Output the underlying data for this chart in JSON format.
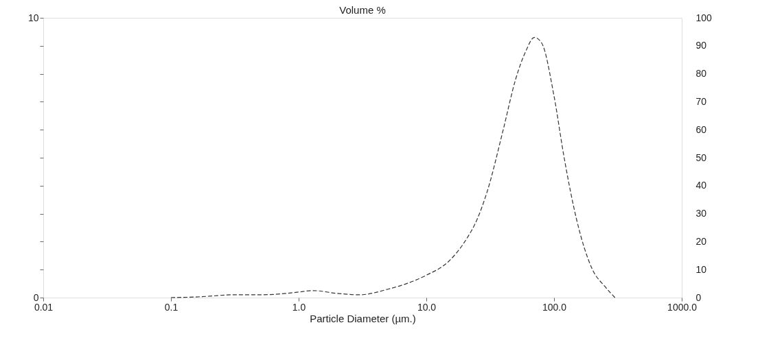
{
  "chart_data": {
    "type": "line",
    "title": "Volume %",
    "xlabel": "Particle Diameter (µm.)",
    "log": "x",
    "xlim": [
      0.01,
      1000
    ],
    "xticks": [
      {
        "value": 0.01,
        "label": "0.01"
      },
      {
        "value": 0.1,
        "label": "0.1"
      },
      {
        "value": 1,
        "label": "1.0"
      },
      {
        "value": 10,
        "label": "10.0"
      },
      {
        "value": 100,
        "label": "100.0"
      },
      {
        "value": 1000,
        "label": "1000.0"
      }
    ],
    "ylim": [
      0,
      10
    ],
    "yticks": [
      0,
      {
        "value": 1,
        "label": null
      },
      {
        "value": 2,
        "label": null
      },
      {
        "value": 3,
        "label": null
      },
      {
        "value": 4,
        "label": null
      },
      {
        "value": 5,
        "label": null
      },
      {
        "value": 6,
        "label": null
      },
      {
        "value": 7,
        "label": null
      },
      {
        "value": 8,
        "label": null
      },
      {
        "value": 9,
        "label": null
      },
      10
    ],
    "y2lim": [
      0,
      100
    ],
    "y2ticks": [
      0,
      10,
      20,
      30,
      40,
      50,
      60,
      70,
      80,
      90,
      100
    ],
    "grid": false,
    "line_style": "dashed",
    "series": [
      {
        "color": "#333333",
        "x": [
          0.1,
          0.15,
          0.2,
          0.3,
          0.5,
          0.8,
          1.0,
          1.3,
          2,
          3,
          5,
          7,
          10,
          15,
          20,
          25,
          30,
          40,
          50,
          60,
          70,
          80,
          100,
          120,
          150,
          200,
          250,
          300
        ],
        "values": [
          0,
          0.02,
          0.05,
          0.1,
          0.1,
          0.15,
          0.2,
          0.25,
          0.15,
          0.1,
          0.3,
          0.5,
          0.8,
          1.3,
          2.0,
          2.8,
          3.8,
          6.0,
          7.8,
          8.8,
          9.3,
          9.1,
          7.2,
          5.0,
          2.8,
          1.0,
          0.4,
          0
        ]
      }
    ]
  }
}
